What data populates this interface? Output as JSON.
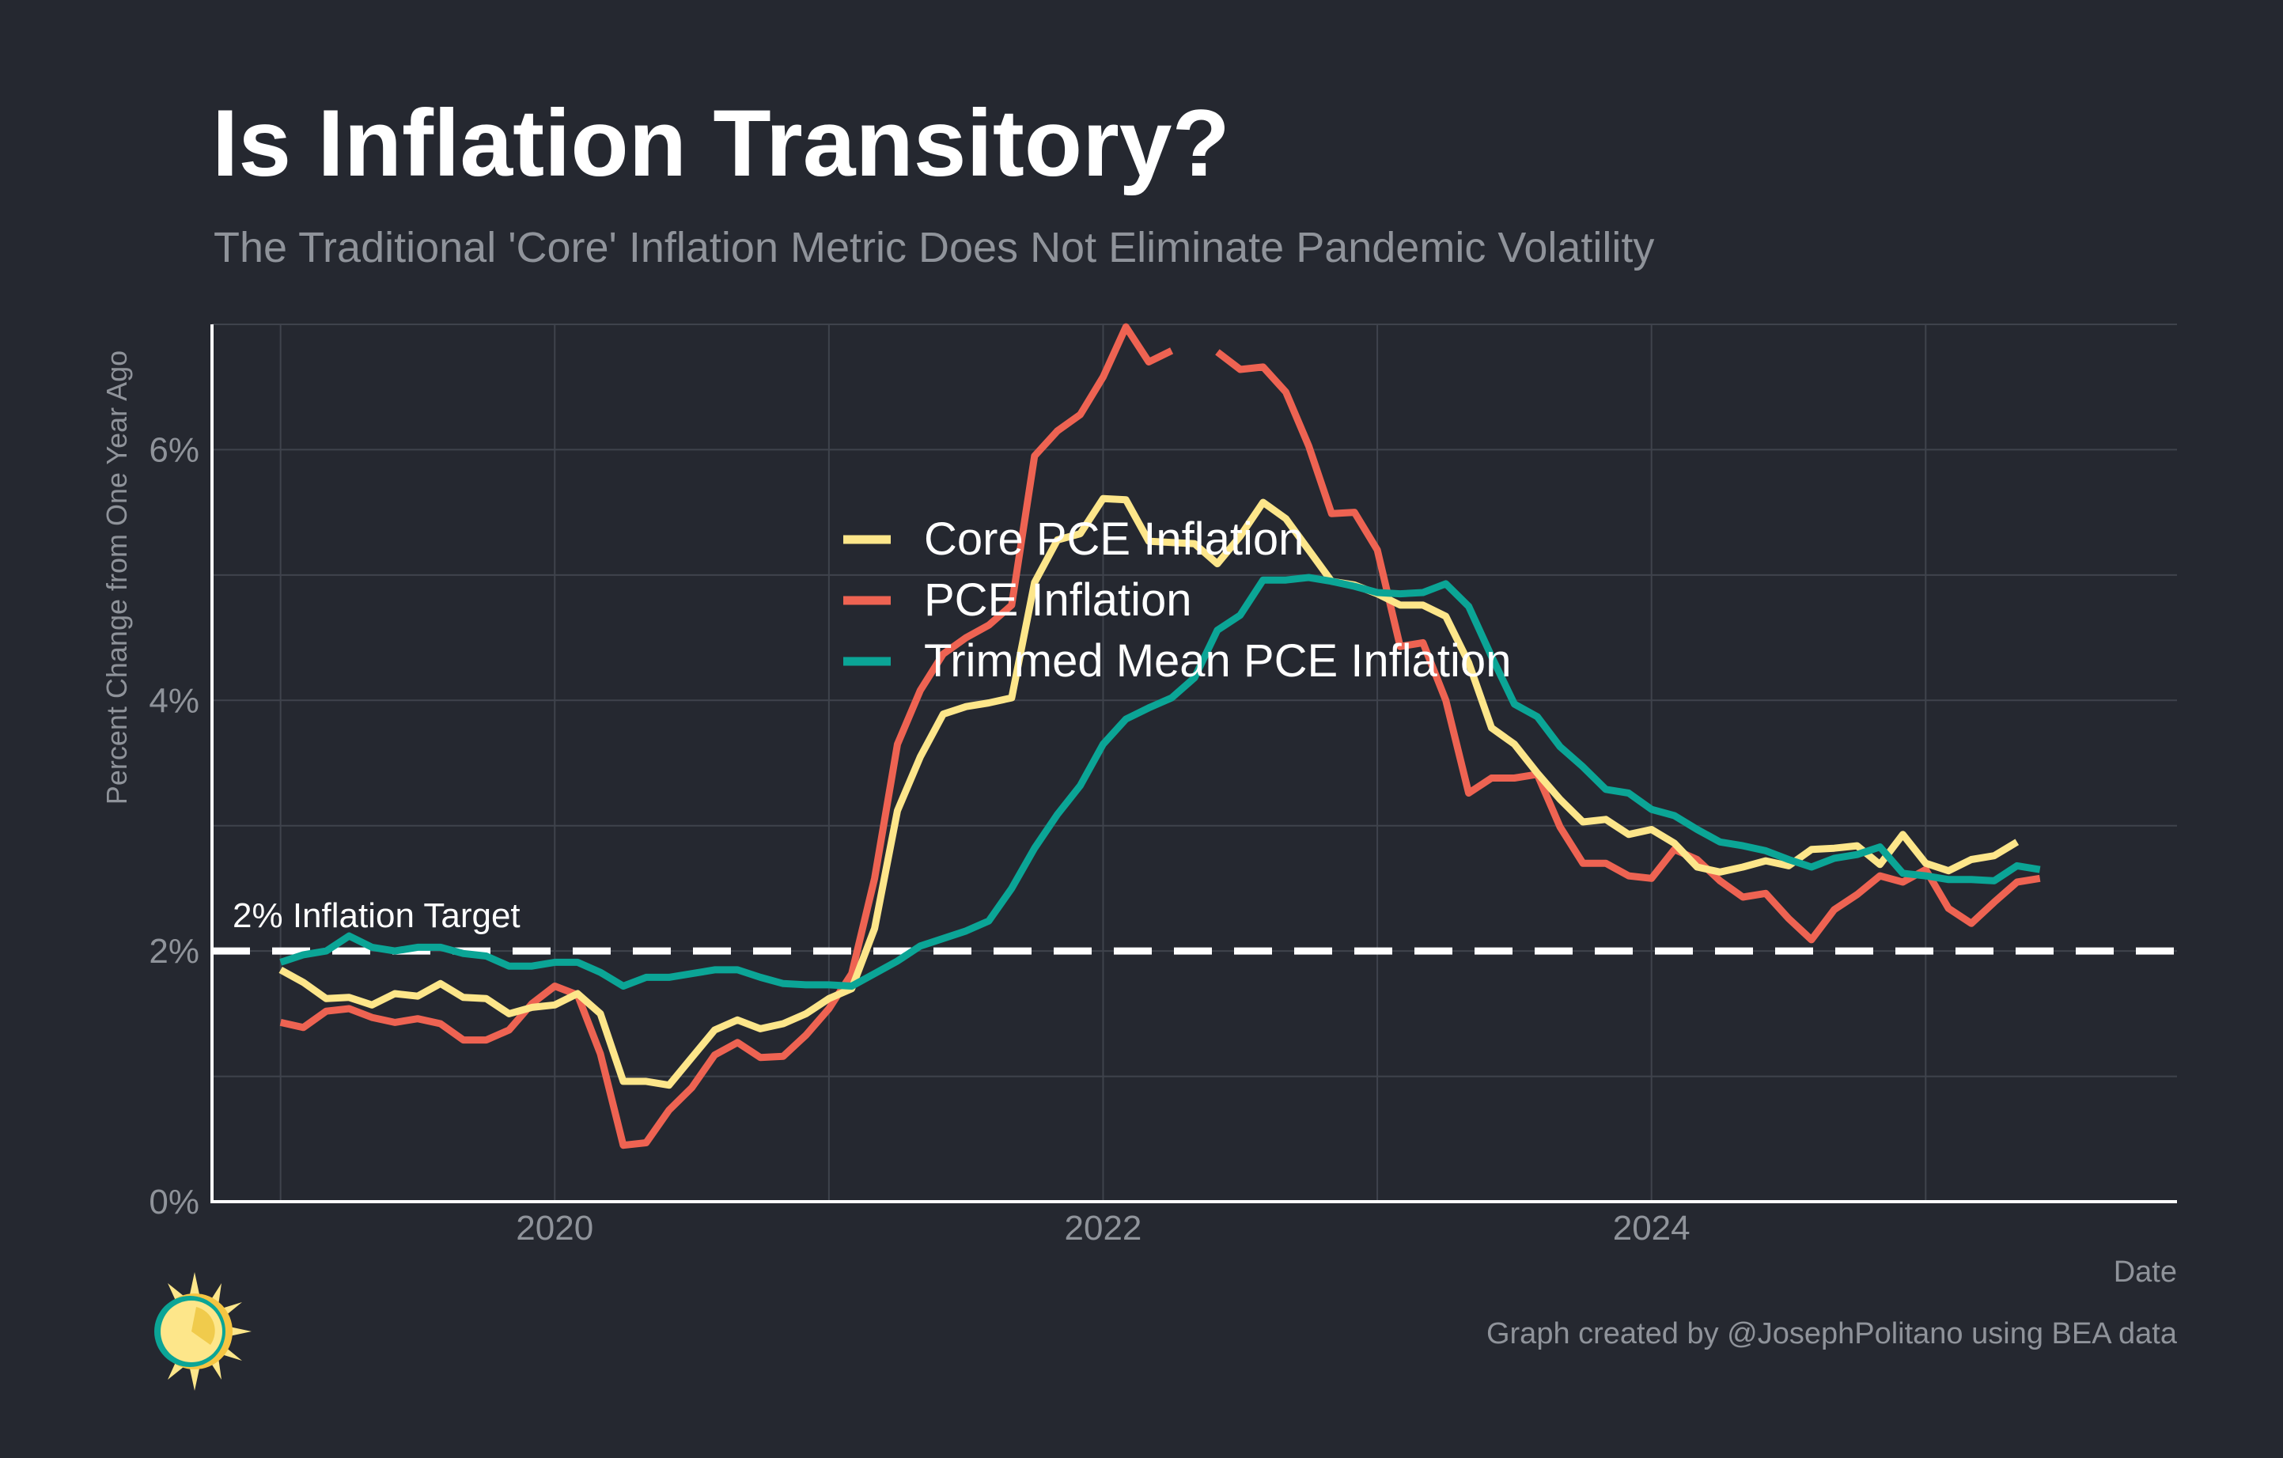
{
  "title": "Is Inflation Transitory?",
  "subtitle": "The Traditional 'Core' Inflation Metric Does Not Eliminate Pandemic Volatility",
  "caption": "Graph created by @JosephPolitano using BEA data",
  "logo_icon": "sun-logo-icon",
  "chart_data": {
    "type": "line",
    "xlabel": "Date",
    "ylabel": "Percent Change from One Year Ago",
    "x_start": "2019-01",
    "x_frequency": "monthly",
    "xlim": [
      "2018-10",
      "2025-12"
    ],
    "ylim": [
      0,
      7
    ],
    "x_ticks": [
      {
        "date": "2020-01",
        "label": "2020"
      },
      {
        "date": "2022-01",
        "label": "2022"
      },
      {
        "date": "2024-01",
        "label": "2024"
      }
    ],
    "y_ticks": [
      {
        "value": 0,
        "label": "0%"
      },
      {
        "value": 2,
        "label": "2%"
      },
      {
        "value": 4,
        "label": "4%"
      },
      {
        "value": 6,
        "label": "6%"
      }
    ],
    "y_minor_gridlines": [
      1,
      3,
      5,
      7
    ],
    "grid": true,
    "legend_position": "center",
    "reference_line": {
      "value": 2,
      "label": "2% Inflation Target",
      "style": "dashed",
      "color": "#ffffff"
    },
    "series": [
      {
        "name": "Core PCE Inflation",
        "color": "#fde68a",
        "values": [
          1.85,
          1.75,
          1.62,
          1.63,
          1.57,
          1.66,
          1.64,
          1.74,
          1.63,
          1.62,
          1.5,
          1.55,
          1.57,
          1.66,
          1.5,
          0.96,
          0.96,
          0.93,
          1.15,
          1.37,
          1.45,
          1.38,
          1.42,
          1.5,
          1.62,
          1.7,
          2.18,
          3.12,
          3.55,
          3.89,
          3.95,
          3.98,
          4.02,
          4.94,
          5.28,
          5.33,
          5.61,
          5.6,
          5.27,
          5.26,
          5.25,
          5.09,
          5.31,
          5.58,
          5.45,
          5.2,
          4.95,
          4.92,
          4.85,
          4.76,
          4.76,
          4.67,
          4.3,
          3.78,
          3.65,
          3.42,
          3.21,
          3.03,
          3.05,
          2.93,
          2.97,
          2.86,
          2.67,
          2.63,
          2.67,
          2.72,
          2.68,
          2.81,
          2.82,
          2.84,
          2.69,
          2.93,
          2.7,
          2.64,
          2.73,
          2.76,
          2.87
        ]
      },
      {
        "name": "PCE Inflation",
        "color": "#ee6352",
        "values": [
          1.43,
          1.39,
          1.52,
          1.54,
          1.47,
          1.43,
          1.46,
          1.42,
          1.29,
          1.29,
          1.37,
          1.58,
          1.72,
          1.65,
          1.18,
          0.45,
          0.47,
          0.73,
          0.91,
          1.17,
          1.27,
          1.15,
          1.16,
          1.33,
          1.54,
          1.82,
          2.58,
          3.65,
          4.08,
          4.37,
          4.5,
          4.6,
          4.76,
          5.95,
          6.15,
          6.28,
          6.58,
          6.98,
          6.7,
          6.79,
          null,
          6.78,
          6.64,
          6.66,
          6.46,
          6.03,
          5.49,
          5.5,
          5.2,
          4.43,
          4.46,
          4.0,
          3.26,
          3.38,
          3.38,
          3.41,
          2.99,
          2.7,
          2.7,
          2.6,
          2.58,
          2.81,
          2.73,
          2.56,
          2.43,
          2.46,
          2.26,
          2.09,
          2.33,
          2.45,
          2.6,
          2.55,
          2.65,
          2.34,
          2.22,
          2.39,
          2.55,
          2.58
        ]
      },
      {
        "name": "Trimmed Mean PCE Inflation",
        "color": "#0ba596",
        "values": [
          1.91,
          1.97,
          2.0,
          2.12,
          2.03,
          2.0,
          2.03,
          2.03,
          1.98,
          1.96,
          1.88,
          1.88,
          1.91,
          1.91,
          1.83,
          1.72,
          1.79,
          1.79,
          1.82,
          1.85,
          1.85,
          1.79,
          1.74,
          1.73,
          1.73,
          1.72,
          1.82,
          1.92,
          2.04,
          2.1,
          2.16,
          2.24,
          2.5,
          2.82,
          3.09,
          3.32,
          3.65,
          3.85,
          3.94,
          4.02,
          4.18,
          4.56,
          4.68,
          4.96,
          4.96,
          4.98,
          4.95,
          4.91,
          4.86,
          4.85,
          4.86,
          4.93,
          4.75,
          4.35,
          3.97,
          3.87,
          3.63,
          3.47,
          3.29,
          3.26,
          3.13,
          3.08,
          2.97,
          2.87,
          2.84,
          2.8,
          2.73,
          2.67,
          2.74,
          2.77,
          2.83,
          2.62,
          2.6,
          2.57,
          2.57,
          2.56,
          2.68,
          2.65
        ]
      }
    ]
  }
}
